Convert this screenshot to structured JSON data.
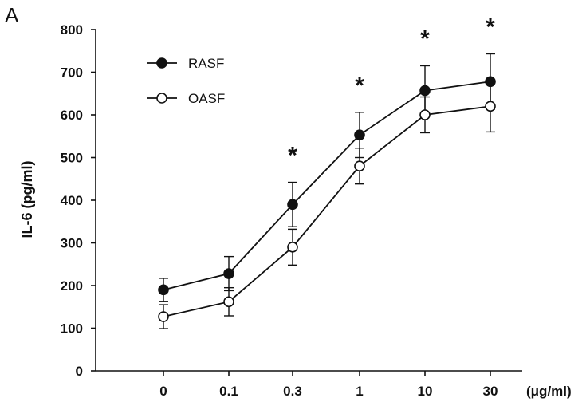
{
  "chart_data": {
    "type": "line",
    "panel_label": "A",
    "ylabel": "IL-6 (pg/ml)",
    "x_unit_label": "(μg/ml)",
    "categories": [
      "0",
      "0.1",
      "0.3",
      "1",
      "10",
      "30"
    ],
    "yticks": [
      "0",
      "100",
      "200",
      "300",
      "400",
      "500",
      "600",
      "700",
      "800"
    ],
    "ylim": [
      0,
      800
    ],
    "grid": false,
    "legend_position": "top-left",
    "series": [
      {
        "name": "RASF",
        "marker": "filled-circle",
        "color": "#111111",
        "values": [
          190,
          228,
          390,
          553,
          657,
          678
        ],
        "errors": [
          27,
          40,
          52,
          53,
          58,
          65
        ]
      },
      {
        "name": "OASF",
        "marker": "open-circle",
        "color": "#111111",
        "values": [
          127,
          162,
          290,
          480,
          600,
          620
        ],
        "errors": [
          28,
          33,
          42,
          42,
          42,
          60
        ]
      }
    ],
    "significance_marks": [
      {
        "category": "0.3",
        "text": "*"
      },
      {
        "category": "1",
        "text": "*"
      },
      {
        "category": "10",
        "text": "*"
      },
      {
        "category": "30",
        "text": "*"
      }
    ]
  }
}
